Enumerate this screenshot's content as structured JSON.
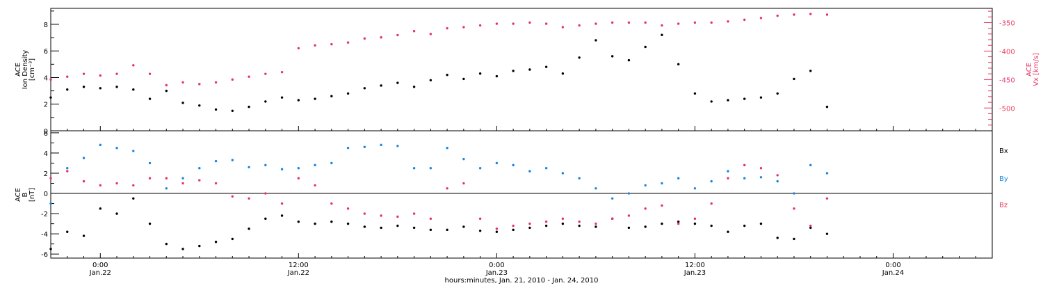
{
  "figure": {
    "xlabel": "hours:minutes, Jan. 21, 2010 - Jan. 24, 2010",
    "time_ticks": [
      {
        "hours": 6,
        "time": "0:00",
        "date": "Jan.22"
      },
      {
        "hours": 18,
        "time": "12:00",
        "date": "Jan.22"
      },
      {
        "hours": 30,
        "time": "0:00",
        "date": "Jan.23"
      },
      {
        "hours": 42,
        "time": "12:00",
        "date": "Jan.23"
      },
      {
        "hours": 54,
        "time": "0:00",
        "date": "Jan.24"
      }
    ]
  },
  "colors": {
    "black": "#000000",
    "pink": "#e8335f",
    "blue": "#1a86e0"
  },
  "chart_data": [
    {
      "type": "scatter",
      "panel": "top",
      "x_units": "hours since Jan. 21, 2010 00:00",
      "xlim": [
        3,
        60
      ],
      "ylabel_left_lines": [
        "ACE",
        "Ion Density",
        "[cm⁻³]"
      ],
      "ylabel_right_lines": [
        "ACE",
        "Vx [km/s]"
      ],
      "ylim_left": [
        0,
        9.2
      ],
      "ylim_right": [
        -540,
        -325
      ],
      "yticks_left": [
        0,
        2,
        4,
        6,
        8
      ],
      "yticks_right": [
        -500,
        -450,
        -400,
        -350
      ],
      "series": [
        {
          "axis": "left",
          "color": "black",
          "x": [
            3,
            4,
            5,
            6,
            7,
            8,
            9,
            10,
            11,
            12,
            13,
            14,
            15,
            16,
            17,
            18,
            19,
            20,
            21,
            22,
            23,
            24,
            25,
            26,
            27,
            28,
            29,
            30,
            31,
            32,
            33,
            34,
            35,
            36,
            37,
            38,
            39,
            40,
            41,
            42,
            43,
            44,
            45,
            46,
            47,
            48,
            49,
            50
          ],
          "y": [
            2.5,
            3.1,
            3.3,
            3.2,
            3.3,
            3.1,
            2.4,
            3.0,
            2.1,
            1.9,
            1.6,
            1.5,
            1.8,
            2.2,
            2.5,
            2.3,
            2.4,
            2.6,
            2.8,
            3.2,
            3.4,
            3.6,
            3.3,
            3.8,
            4.2,
            3.9,
            4.3,
            4.1,
            4.5,
            4.6,
            4.8,
            4.3,
            5.5,
            6.8,
            5.6,
            5.3,
            6.3,
            7.2,
            5.0,
            2.8,
            2.2,
            2.3,
            2.4,
            2.5,
            2.8,
            3.9,
            4.5,
            1.8
          ]
        },
        {
          "axis": "right",
          "color": "pink",
          "x": [
            3,
            4,
            5,
            6,
            7,
            8,
            9,
            10,
            11,
            12,
            13,
            14,
            15,
            16,
            17,
            18,
            19,
            20,
            21,
            22,
            23,
            24,
            25,
            26,
            27,
            28,
            29,
            30,
            31,
            32,
            33,
            34,
            35,
            36,
            37,
            38,
            39,
            40,
            41,
            42,
            43,
            44,
            45,
            46,
            47,
            48,
            49,
            50
          ],
          "y": [
            -450,
            -445,
            -440,
            -443,
            -440,
            -425,
            -440,
            -460,
            -455,
            -458,
            -455,
            -450,
            -445,
            -440,
            -437,
            -395,
            -390,
            -388,
            -385,
            -378,
            -376,
            -372,
            -365,
            -370,
            -360,
            -358,
            -355,
            -352,
            -352,
            -350,
            -352,
            -358,
            -355,
            -352,
            -350,
            -350,
            -350,
            -355,
            -352,
            -350,
            -350,
            -348,
            -345,
            -342,
            -338,
            -336,
            -335,
            -336
          ]
        }
      ]
    },
    {
      "type": "scatter",
      "panel": "bottom",
      "x_units": "hours since Jan. 21, 2010 00:00",
      "xlim": [
        3,
        60
      ],
      "ylabel_lines": [
        "ACE",
        "B",
        "[nT]"
      ],
      "ylim": [
        -6.4,
        6.2
      ],
      "yticks": [
        -6,
        -4,
        -2,
        0,
        2,
        4,
        6
      ],
      "legend": [
        "Bx",
        "By",
        "Bz"
      ],
      "legend_placement": "right",
      "series": [
        {
          "name": "Bx",
          "color": "black",
          "x": [
            3,
            4,
            5,
            6,
            7,
            8,
            9,
            10,
            11,
            12,
            13,
            14,
            15,
            16,
            17,
            18,
            19,
            20,
            21,
            22,
            23,
            24,
            25,
            26,
            27,
            28,
            29,
            30,
            31,
            32,
            33,
            34,
            35,
            36,
            37,
            38,
            39,
            40,
            41,
            42,
            43,
            44,
            45,
            46,
            47,
            48,
            49,
            50
          ],
          "y": [
            -5.5,
            -3.8,
            -4.2,
            -1.5,
            -2.0,
            -0.5,
            -3.0,
            -5.0,
            -5.5,
            -5.2,
            -4.8,
            -4.5,
            -3.5,
            -2.5,
            -2.2,
            -2.8,
            -3.0,
            -2.8,
            -3.0,
            -3.3,
            -3.4,
            -3.2,
            -3.4,
            -3.6,
            -3.6,
            -3.3,
            -3.7,
            -3.8,
            -3.6,
            -3.4,
            -3.2,
            -3.0,
            -3.2,
            -3.3,
            -2.5,
            -3.4,
            -3.3,
            -3.0,
            -2.8,
            -3.0,
            -3.2,
            -3.8,
            -3.2,
            -3.0,
            -4.4,
            -4.5,
            -3.4,
            -4.0
          ]
        },
        {
          "name": "By",
          "color": "blue",
          "x": [
            3,
            4,
            5,
            6,
            7,
            8,
            9,
            10,
            11,
            12,
            13,
            14,
            15,
            16,
            17,
            18,
            19,
            20,
            21,
            22,
            23,
            24,
            25,
            26,
            27,
            28,
            29,
            30,
            31,
            32,
            33,
            34,
            35,
            36,
            37,
            38,
            39,
            40,
            41,
            42,
            43,
            44,
            45,
            46,
            47,
            48,
            49,
            50
          ],
          "y": [
            -1.0,
            2.5,
            3.5,
            4.8,
            4.5,
            4.2,
            3.0,
            0.5,
            1.5,
            2.5,
            3.2,
            3.3,
            2.6,
            2.8,
            2.4,
            2.5,
            2.8,
            3.0,
            4.5,
            4.6,
            4.8,
            4.7,
            2.5,
            2.5,
            4.5,
            3.4,
            2.5,
            3.0,
            2.8,
            2.2,
            2.5,
            2.0,
            1.5,
            0.5,
            -0.5,
            0.0,
            0.8,
            1.0,
            1.5,
            0.5,
            1.2,
            2.2,
            1.5,
            1.6,
            1.2,
            0.0,
            2.8,
            2.0
          ]
        },
        {
          "name": "Bz",
          "color": "pink",
          "x": [
            3,
            4,
            5,
            6,
            7,
            8,
            9,
            10,
            11,
            12,
            13,
            14,
            15,
            16,
            17,
            18,
            19,
            20,
            21,
            22,
            23,
            24,
            25,
            26,
            27,
            28,
            29,
            30,
            31,
            32,
            33,
            34,
            35,
            36,
            37,
            38,
            39,
            40,
            41,
            42,
            43,
            44,
            45,
            46,
            47,
            48,
            49,
            50
          ],
          "y": [
            1.5,
            2.2,
            1.2,
            0.8,
            1.0,
            0.8,
            1.5,
            1.5,
            1.0,
            1.3,
            1.0,
            -0.3,
            -0.5,
            0.0,
            -1.0,
            1.5,
            0.8,
            -1.0,
            -1.5,
            -2.0,
            -2.2,
            -2.3,
            -2.0,
            -2.5,
            0.5,
            1.0,
            -2.5,
            -3.5,
            -3.2,
            -3.0,
            -2.8,
            -2.5,
            -2.8,
            -3.0,
            -2.5,
            -2.2,
            -1.5,
            -1.2,
            -3.0,
            -2.5,
            -1.0,
            1.5,
            2.8,
            2.5,
            1.8,
            -1.5,
            -3.2,
            -0.5
          ]
        }
      ]
    }
  ]
}
